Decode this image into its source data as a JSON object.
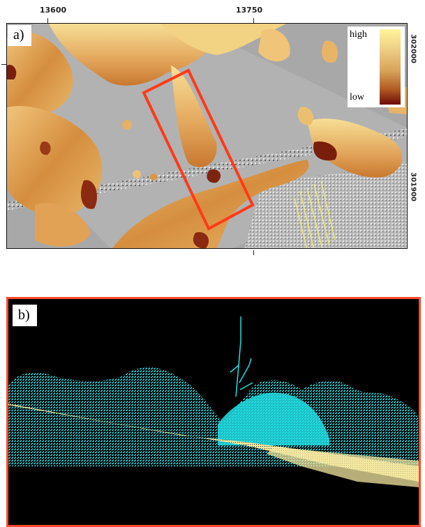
{
  "axes": {
    "x_ticks": [
      "13600",
      "13750"
    ],
    "y_ticks": [
      "302000",
      "301900"
    ]
  },
  "panel_a": {
    "label": "a)",
    "legend": {
      "high": "high",
      "low": "low"
    },
    "colors": {
      "high": "#fff39a",
      "low": "#6b0a08",
      "background": "#a9a9a9",
      "highlight_box": "#ff3a1a"
    }
  },
  "panel_b": {
    "label": "b)",
    "colors": {
      "background": "#000000",
      "vegetation_points": "#22e0e6",
      "ground_points": "#f3e7a0",
      "border": "#ff4a2a"
    }
  }
}
